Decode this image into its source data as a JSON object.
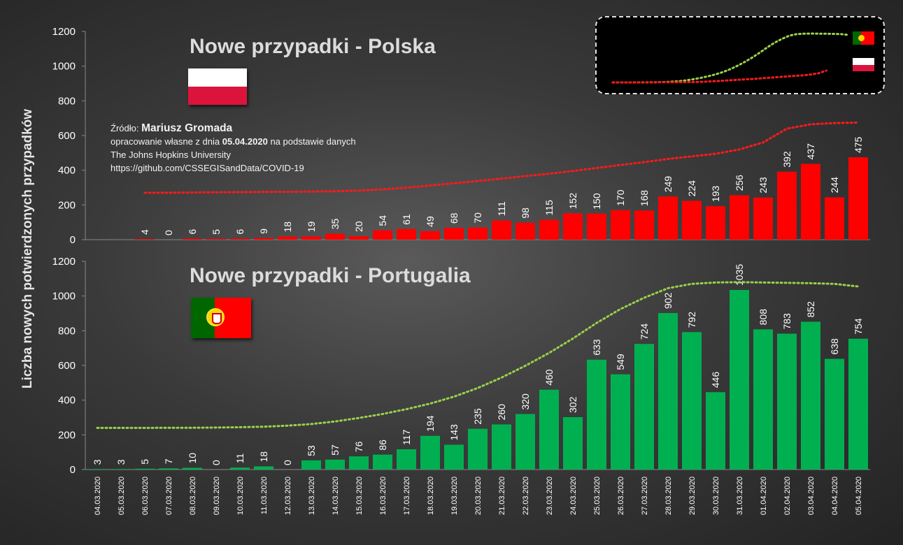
{
  "y_axis_label": "Liczba nowych potwierdzonych przypadków",
  "source": {
    "prefix": "Źródło:",
    "author": "Mariusz Gromada",
    "line2_pre": "opracowanie własne z dnia",
    "line2_date": "05.04.2020",
    "line2_post": "na podstawie danych",
    "line3": "The Johns Hopkins University",
    "line4": "https://github.com/CSSEGISandData/COVID-19"
  },
  "colors": {
    "poland_bar": "#ff0000",
    "portugal_bar": "#00b050",
    "poland_trend": "#ff1a1a",
    "portugal_trend": "#9ad14a",
    "axis_text": "#ffffff",
    "background": "#3a3a3a"
  },
  "inset": {
    "description_icons": [
      "portugal-flag-icon",
      "poland-flag-icon"
    ]
  },
  "chart_data": [
    {
      "type": "bar",
      "title": "Nowe przypadki - Polska",
      "flag": "poland-flag-icon",
      "xlabel": "",
      "ylabel": "Liczba nowych potwierdzonych przypadków",
      "ylim": [
        0,
        1200
      ],
      "yticks": [
        0,
        200,
        400,
        600,
        800,
        1000,
        1200
      ],
      "categories": [
        "04.03.2020",
        "05.03.2020",
        "06.03.2020",
        "07.03.2020",
        "08.03.2020",
        "09.03.2020",
        "10.03.2020",
        "11.03.2020",
        "12.03.2020",
        "13.03.2020",
        "14.03.2020",
        "15.03.2020",
        "16.03.2020",
        "17.03.2020",
        "18.03.2020",
        "19.03.2020",
        "20.03.2020",
        "21.03.2020",
        "22.03.2020",
        "23.03.2020",
        "24.03.2020",
        "25.03.2020",
        "26.03.2020",
        "27.03.2020",
        "28.03.2020",
        "29.03.2020",
        "30.03.2020",
        "31.03.2020",
        "01.04.2020",
        "02.04.2020",
        "03.04.2020",
        "04.04.2020",
        "05.04.2020"
      ],
      "values": [
        null,
        null,
        4,
        0,
        6,
        5,
        6,
        9,
        18,
        19,
        35,
        20,
        54,
        61,
        49,
        68,
        70,
        111,
        98,
        115,
        152,
        150,
        170,
        168,
        249,
        224,
        193,
        256,
        243,
        392,
        437,
        244,
        475
      ],
      "trend": [
        null,
        null,
        270,
        270,
        272,
        273,
        274,
        275,
        276,
        277,
        279,
        283,
        290,
        300,
        312,
        325,
        338,
        352,
        366,
        380,
        396,
        413,
        430,
        447,
        465,
        480,
        495,
        520,
        560,
        640,
        665,
        672,
        675
      ]
    },
    {
      "type": "bar",
      "title": "Nowe przypadki - Portugalia",
      "flag": "portugal-flag-icon",
      "xlabel": "",
      "ylabel": "Liczba nowych potwierdzonych przypadków",
      "ylim": [
        0,
        1200
      ],
      "yticks": [
        0,
        200,
        400,
        600,
        800,
        1000,
        1200
      ],
      "categories": [
        "04.03.2020",
        "05.03.2020",
        "06.03.2020",
        "07.03.2020",
        "08.03.2020",
        "09.03.2020",
        "10.03.2020",
        "11.03.2020",
        "12.03.2020",
        "13.03.2020",
        "14.03.2020",
        "15.03.2020",
        "16.03.2020",
        "17.03.2020",
        "18.03.2020",
        "19.03.2020",
        "20.03.2020",
        "21.03.2020",
        "22.03.2020",
        "23.03.2020",
        "24.03.2020",
        "25.03.2020",
        "26.03.2020",
        "27.03.2020",
        "28.03.2020",
        "29.03.2020",
        "30.03.2020",
        "31.03.2020",
        "01.04.2020",
        "02.04.2020",
        "03.04.2020",
        "04.04.2020",
        "05.04.2020"
      ],
      "values": [
        3,
        3,
        5,
        7,
        10,
        0,
        11,
        18,
        0,
        53,
        57,
        76,
        86,
        117,
        194,
        143,
        235,
        260,
        320,
        460,
        302,
        633,
        549,
        724,
        902,
        792,
        446,
        1035,
        808,
        783,
        852,
        638,
        754
      ],
      "trend": [
        240,
        240,
        240,
        241,
        241,
        242,
        244,
        247,
        253,
        262,
        277,
        297,
        320,
        348,
        380,
        420,
        470,
        530,
        598,
        672,
        755,
        845,
        925,
        990,
        1045,
        1070,
        1078,
        1080,
        1078,
        1076,
        1074,
        1070,
        1055
      ]
    }
  ]
}
